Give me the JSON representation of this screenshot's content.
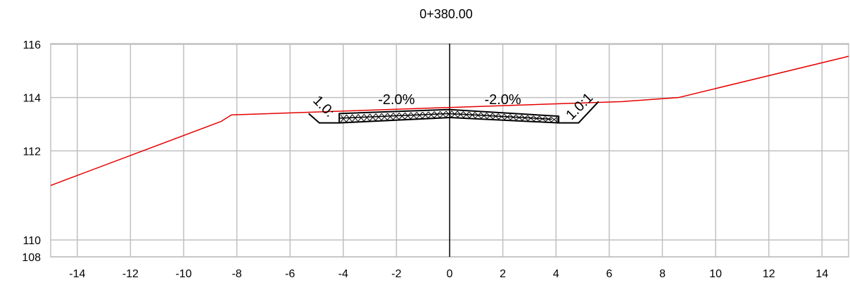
{
  "chart_data": {
    "type": "line",
    "title": "0+380.00",
    "xlim": [
      -15,
      15
    ],
    "ylim": [
      108,
      116
    ],
    "y_display_ticks": [
      108,
      110,
      112,
      114,
      116
    ],
    "x_ticks": [
      -14,
      -12,
      -10,
      -8,
      -6,
      -4,
      -2,
      0,
      2,
      4,
      6,
      8,
      10,
      12,
      14
    ],
    "x_tick_labels": [
      "-14",
      "-12",
      "-10",
      "-8",
      "-6",
      "-4",
      "-2",
      "0",
      "2",
      "4",
      "6",
      "8",
      "10",
      "12",
      "14"
    ],
    "y_tick_labels": [
      "116",
      "114",
      "112",
      "110",
      "108"
    ],
    "grid": true,
    "colors": {
      "ground": "#e60000",
      "design": "#000000",
      "grid": "#c0c0c0"
    },
    "series": [
      {
        "x": [
          -15.0,
          -8.6,
          -8.2,
          6.5,
          8.6,
          15.0
        ],
        "y": [
          110.7,
          113.1,
          113.35,
          113.85,
          114.0,
          115.55
        ]
      },
      {
        "x": [
          -5.3,
          -4.9,
          -4.15,
          0.0,
          4.1,
          4.85,
          5.6
        ],
        "y": [
          113.4,
          113.05,
          113.05,
          113.25,
          113.05,
          113.05,
          113.85
        ]
      },
      {
        "x": [
          -4.15,
          -4.15,
          0.0,
          4.1,
          4.1
        ],
        "y": [
          113.05,
          113.4,
          113.55,
          113.3,
          113.05
        ]
      }
    ],
    "centerline_x": 0,
    "annotations": [
      {
        "text": "-2.0%",
        "x": -2.0,
        "y": 113.75
      },
      {
        "text": "-2.0%",
        "x": 2.0,
        "y": 113.75
      },
      {
        "text": "1.0:",
        "x": -4.85,
        "y": 113.55,
        "rotation": 45
      },
      {
        "text": "1.0:1",
        "x": 5.0,
        "y": 113.55,
        "rotation": -45
      }
    ]
  }
}
